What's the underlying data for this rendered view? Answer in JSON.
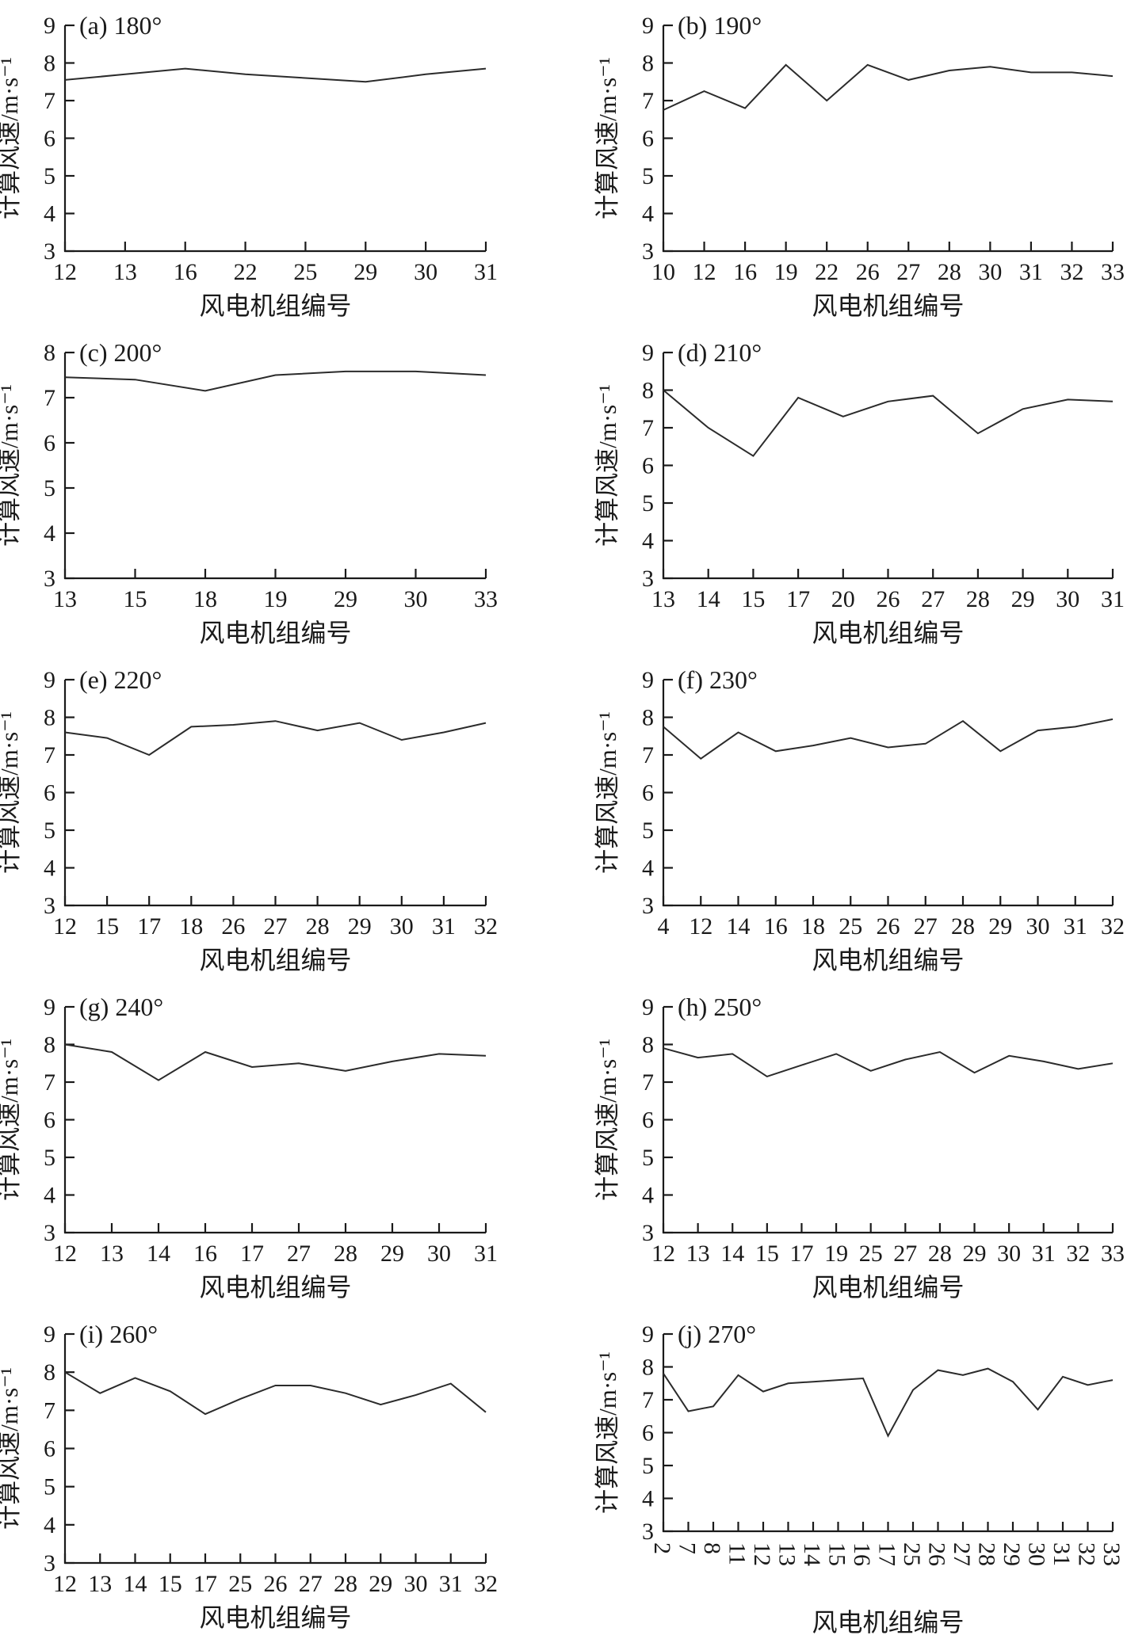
{
  "figure": {
    "background": "#ffffff",
    "colors": {
      "line": "#2b2b2b",
      "axis": "#1a1a1a",
      "text": "#1a1a1a"
    },
    "xlabel": "风电机组编号",
    "ylabel": "计算风速/m·s⁻¹"
  },
  "chart_data": [
    {
      "id": "a",
      "type": "line",
      "title": "(a) 180°",
      "xlabel": "风电机组编号",
      "ylabel": "计算风速/m·s⁻¹",
      "categories": [
        "12",
        "13",
        "16",
        "22",
        "25",
        "29",
        "30",
        "31"
      ],
      "values": [
        7.55,
        7.7,
        7.85,
        7.7,
        7.6,
        7.5,
        7.7,
        7.85
      ],
      "ylim": [
        3,
        9
      ],
      "yticks": [
        3,
        4,
        5,
        6,
        7,
        8,
        9
      ],
      "grid": false,
      "legend": "none"
    },
    {
      "id": "b",
      "type": "line",
      "title": "(b) 190°",
      "xlabel": "风电机组编号",
      "ylabel": "计算风速/m·s⁻¹",
      "categories": [
        "10",
        "12",
        "16",
        "19",
        "22",
        "26",
        "27",
        "28",
        "30",
        "31",
        "32",
        "33"
      ],
      "values": [
        6.75,
        7.25,
        6.8,
        7.95,
        7.0,
        7.95,
        7.55,
        7.8,
        7.9,
        7.75,
        7.75,
        7.65
      ],
      "ylim": [
        3,
        9
      ],
      "yticks": [
        3,
        4,
        5,
        6,
        7,
        8,
        9
      ],
      "grid": false,
      "legend": "none"
    },
    {
      "id": "c",
      "type": "line",
      "title": "(c) 200°",
      "xlabel": "风电机组编号",
      "ylabel": "计算风速/m·s⁻¹",
      "categories": [
        "13",
        "15",
        "18",
        "19",
        "29",
        "30",
        "33"
      ],
      "values": [
        7.45,
        7.4,
        7.15,
        7.5,
        7.58,
        7.58,
        7.5
      ],
      "ylim": [
        3,
        8
      ],
      "yticks": [
        3,
        4,
        5,
        6,
        7,
        8
      ],
      "grid": false,
      "legend": "none"
    },
    {
      "id": "d",
      "type": "line",
      "title": "(d) 210°",
      "xlabel": "风电机组编号",
      "ylabel": "计算风速/m·s⁻¹",
      "categories": [
        "13",
        "14",
        "15",
        "17",
        "20",
        "26",
        "27",
        "28",
        "29",
        "30",
        "31"
      ],
      "values": [
        8.0,
        7.0,
        6.25,
        7.8,
        7.3,
        7.7,
        7.85,
        6.85,
        7.5,
        7.75,
        7.7
      ],
      "ylim": [
        3,
        9
      ],
      "yticks": [
        3,
        4,
        5,
        6,
        7,
        8,
        9
      ],
      "grid": false,
      "legend": "none"
    },
    {
      "id": "e",
      "type": "line",
      "title": "(e) 220°",
      "xlabel": "风电机组编号",
      "ylabel": "计算风速/m·s⁻¹",
      "categories": [
        "12",
        "15",
        "17",
        "18",
        "26",
        "27",
        "28",
        "29",
        "30",
        "31",
        "32"
      ],
      "values": [
        7.6,
        7.45,
        7.0,
        7.75,
        7.8,
        7.9,
        7.65,
        7.85,
        7.4,
        7.6,
        7.85
      ],
      "ylim": [
        3,
        9
      ],
      "yticks": [
        3,
        4,
        5,
        6,
        7,
        8,
        9
      ],
      "grid": false,
      "legend": "none"
    },
    {
      "id": "f",
      "type": "line",
      "title": "(f) 230°",
      "xlabel": "风电机组编号",
      "ylabel": "计算风速/m·s⁻¹",
      "categories": [
        "4",
        "12",
        "14",
        "16",
        "18",
        "25",
        "26",
        "27",
        "28",
        "29",
        "30",
        "31",
        "32"
      ],
      "values": [
        7.75,
        6.9,
        7.6,
        7.1,
        7.25,
        7.45,
        7.2,
        7.3,
        7.9,
        7.1,
        7.65,
        7.75,
        7.95
      ],
      "ylim": [
        3,
        9
      ],
      "yticks": [
        3,
        4,
        5,
        6,
        7,
        8,
        9
      ],
      "grid": false,
      "legend": "none"
    },
    {
      "id": "g",
      "type": "line",
      "title": "(g) 240°",
      "xlabel": "风电机组编号",
      "ylabel": "计算风速/m·s⁻¹",
      "categories": [
        "12",
        "13",
        "14",
        "16",
        "17",
        "27",
        "28",
        "29",
        "30",
        "31"
      ],
      "values": [
        8.0,
        7.8,
        7.05,
        7.8,
        7.4,
        7.5,
        7.3,
        7.55,
        7.75,
        7.7
      ],
      "ylim": [
        3,
        9
      ],
      "yticks": [
        3,
        4,
        5,
        6,
        7,
        8,
        9
      ],
      "grid": false,
      "legend": "none"
    },
    {
      "id": "h",
      "type": "line",
      "title": "(h) 250°",
      "xlabel": "风电机组编号",
      "ylabel": "计算风速/m·s⁻¹",
      "categories": [
        "12",
        "13",
        "14",
        "15",
        "17",
        "19",
        "25",
        "27",
        "28",
        "29",
        "30",
        "31",
        "32",
        "33"
      ],
      "values": [
        7.9,
        7.65,
        7.75,
        7.15,
        7.45,
        7.75,
        7.3,
        7.6,
        7.8,
        7.25,
        7.7,
        7.55,
        7.35,
        7.5
      ],
      "ylim": [
        3,
        9
      ],
      "yticks": [
        3,
        4,
        5,
        6,
        7,
        8,
        9
      ],
      "grid": false,
      "legend": "none"
    },
    {
      "id": "i",
      "type": "line",
      "title": "(i) 260°",
      "xlabel": "风电机组编号",
      "ylabel": "计算风速/m·s⁻¹",
      "categories": [
        "12",
        "13",
        "14",
        "15",
        "17",
        "25",
        "26",
        "27",
        "28",
        "29",
        "30",
        "31",
        "32"
      ],
      "values": [
        8.0,
        7.45,
        7.85,
        7.5,
        6.9,
        7.3,
        7.65,
        7.65,
        7.45,
        7.15,
        7.4,
        7.7,
        6.95
      ],
      "ylim": [
        3,
        9
      ],
      "yticks": [
        3,
        4,
        5,
        6,
        7,
        8,
        9
      ],
      "grid": false,
      "legend": "none"
    },
    {
      "id": "j",
      "type": "line",
      "title": "(j) 270°",
      "xlabel": "风电机组编号",
      "ylabel": "计算风速/m·s⁻¹",
      "categories": [
        "2",
        "7",
        "8",
        "11",
        "12",
        "13",
        "14",
        "15",
        "16",
        "17",
        "25",
        "26",
        "27",
        "28",
        "29",
        "30",
        "31",
        "32",
        "33"
      ],
      "values": [
        7.8,
        6.65,
        6.8,
        7.75,
        7.25,
        7.5,
        7.55,
        7.6,
        7.65,
        5.9,
        7.3,
        7.9,
        7.75,
        7.95,
        7.55,
        6.7,
        7.7,
        7.45,
        7.6
      ],
      "ylim": [
        3,
        9
      ],
      "yticks": [
        3,
        4,
        5,
        6,
        7,
        8,
        9
      ],
      "grid": false,
      "legend": "none",
      "xtick_rotation": 90
    }
  ]
}
